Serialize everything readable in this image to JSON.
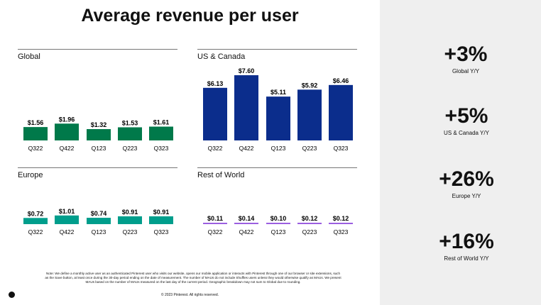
{
  "title": "Average revenue per user",
  "chart_data": [
    {
      "type": "bar",
      "title": "Global",
      "categories": [
        "Q322",
        "Q422",
        "Q123",
        "Q223",
        "Q323"
      ],
      "values": [
        1.56,
        1.96,
        1.32,
        1.53,
        1.61
      ],
      "labels": [
        "$1.56",
        "$1.96",
        "$1.32",
        "$1.53",
        "$1.61"
      ],
      "color": "#00794a"
    },
    {
      "type": "bar",
      "title": "US & Canada",
      "categories": [
        "Q322",
        "Q422",
        "Q123",
        "Q223",
        "Q323"
      ],
      "values": [
        6.13,
        7.6,
        5.11,
        5.92,
        6.46
      ],
      "labels": [
        "$6.13",
        "$7.60",
        "$5.11",
        "$5.92",
        "$6.46"
      ],
      "color": "#0b2d8c"
    },
    {
      "type": "bar",
      "title": "Europe",
      "categories": [
        "Q322",
        "Q422",
        "Q123",
        "Q223",
        "Q323"
      ],
      "values": [
        0.72,
        1.01,
        0.74,
        0.91,
        0.91
      ],
      "labels": [
        "$0.72",
        "$1.01",
        "$0.74",
        "$0.91",
        "$0.91"
      ],
      "color": "#009e8c"
    },
    {
      "type": "bar",
      "title": "Rest of World",
      "categories": [
        "Q322",
        "Q422",
        "Q123",
        "Q223",
        "Q323"
      ],
      "values": [
        0.11,
        0.14,
        0.1,
        0.12,
        0.12
      ],
      "labels": [
        "$0.11",
        "$0.14",
        "$0.10",
        "$0.12",
        "$0.12"
      ],
      "color": "#9b5fe0"
    }
  ],
  "stats": [
    {
      "value": "+3%",
      "label": "Global Y/Y"
    },
    {
      "value": "+5%",
      "label": "US & Canada Y/Y"
    },
    {
      "value": "+26%",
      "label": "Europe Y/Y"
    },
    {
      "value": "+16%",
      "label": "Rest of World Y/Y"
    }
  ],
  "note": "Note: We define a monthly active user as an authenticated Pinterest user who visits our website, opens our mobile application or interacts with Pinterest through one of our browser or site extensions, such as the Save button, at least once during the 30-day period ending on the date of measurement. The number of MAUs do not include Shuffles users unless they would otherwise qualify as MAUs. We present MAUs based on the number of MAUs measured on the last day of the current period. Geographic breakdown may not sum to Global due to rounding.",
  "copyright": "© 2023 Pinterest. All rights reserved.",
  "logo": "P"
}
